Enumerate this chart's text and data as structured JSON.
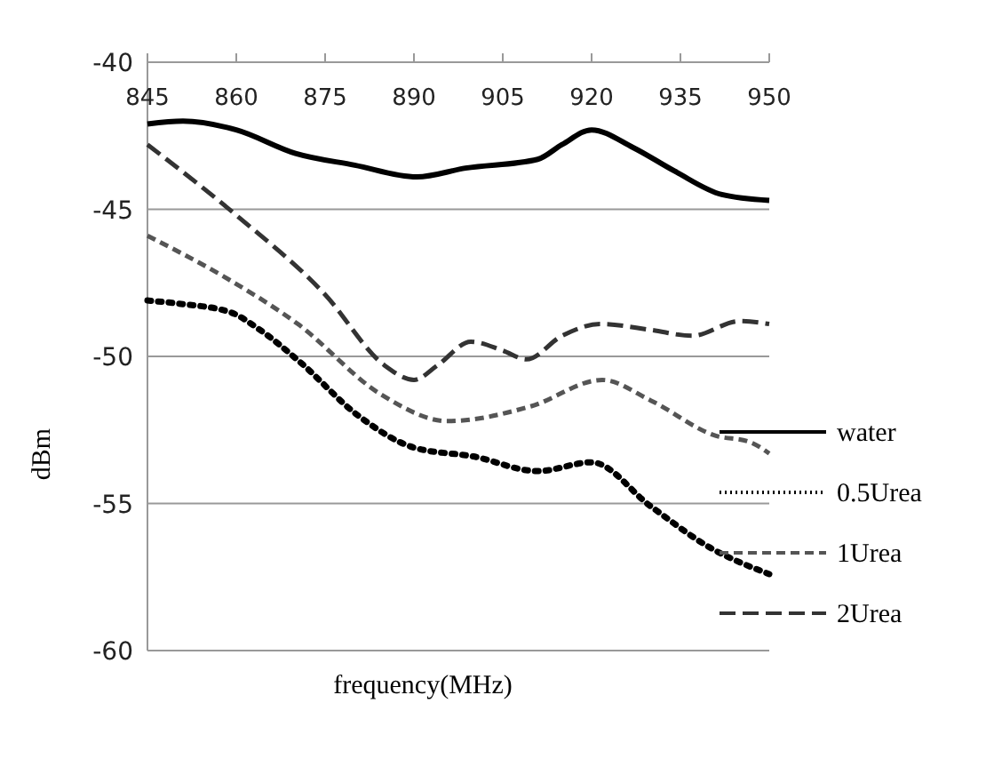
{
  "chart_data": {
    "type": "line",
    "xlabel": "frequency(MHz)",
    "ylabel": "dBm",
    "xlim": [
      845,
      950
    ],
    "xticks": [
      845,
      860,
      875,
      890,
      905,
      920,
      935,
      950
    ],
    "ylim": [
      -60,
      -40
    ],
    "yticks": [
      -60,
      -55,
      -50,
      -45,
      -40
    ],
    "grid": "y",
    "legend": "bottom right",
    "marker": "none",
    "series": [
      {
        "name": "water",
        "color": "#000000",
        "line_style": "solid",
        "x": [
          845,
          851,
          860,
          870,
          880,
          890.5,
          898.7,
          910.9,
          915,
          920,
          927,
          934,
          942,
          950
        ],
        "values": [
          -42.1,
          -42.0,
          -42.3,
          -43.1,
          -43.5,
          -43.9,
          -43.6,
          -43.3,
          -42.8,
          -42.3,
          -42.9,
          -43.7,
          -44.5,
          -44.7
        ]
      },
      {
        "name": "0.5Urea",
        "color": "#000000",
        "line_style": "dotted",
        "x": [
          845,
          850,
          859,
          864,
          870.8,
          880.5,
          890,
          900,
          910.9,
          920,
          930,
          940,
          950
        ],
        "values": [
          -48.1,
          -48.2,
          -48.5,
          -49.1,
          -50.2,
          -52.0,
          -53.1,
          -53.4,
          -53.9,
          -53.6,
          -55.1,
          -56.5,
          -57.4
        ]
      },
      {
        "name": "1Urea",
        "color": "#555555",
        "line_style": "dashed",
        "x": [
          845,
          858,
          870.4,
          884.5,
          895.7,
          909.7,
          921.8,
          930,
          941,
          946.6,
          950
        ],
        "values": [
          -45.9,
          -47.3,
          -48.9,
          -51.3,
          -52.2,
          -51.7,
          -50.8,
          -51.5,
          -52.7,
          -52.9,
          -53.3
        ]
      },
      {
        "name": "2Urea",
        "color": "#333333",
        "line_style": "dashed",
        "x": [
          845,
          860,
          875,
          885,
          890,
          894,
          899.6,
          905,
          909,
          915,
          921.5,
          930,
          937,
          945,
          950
        ],
        "values": [
          -42.8,
          -45.2,
          -47.9,
          -50.3,
          -50.8,
          -50.3,
          -49.5,
          -49.8,
          -50.1,
          -49.3,
          -48.9,
          -49.1,
          -49.3,
          -48.8,
          -48.9
        ]
      }
    ]
  }
}
